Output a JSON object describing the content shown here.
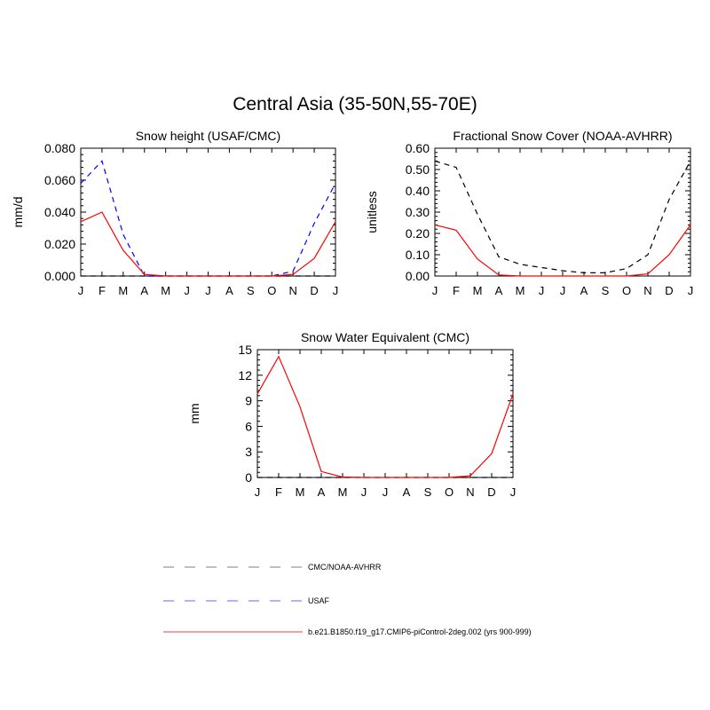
{
  "figure": {
    "title": "Central Asia (35-50N,55-70E)"
  },
  "colors": {
    "cmc_noaa": "#000000",
    "usaf": "#0000ff",
    "model": "#ff0000",
    "legend_cmc_noaa": "#999999",
    "legend_usaf": "#8888ee",
    "legend_model": "#ff6666"
  },
  "chart_data": [
    {
      "type": "line",
      "title": "Snow height (USAF/CMC)",
      "xlabel": "",
      "ylabel": "mm/d",
      "categories": [
        "J",
        "F",
        "M",
        "A",
        "M",
        "J",
        "J",
        "A",
        "S",
        "O",
        "N",
        "D",
        "J"
      ],
      "ylim": [
        0,
        0.08
      ],
      "yticks": [
        0,
        0.02,
        0.04,
        0.06,
        0.08
      ],
      "ytick_labels": [
        "0.000",
        "0.020",
        "0.040",
        "0.060",
        "0.080"
      ],
      "series": [
        {
          "key": "cmc_noaa",
          "dash": "6,5",
          "values": [
            0,
            0,
            0,
            0,
            0,
            0,
            0,
            0,
            0,
            0,
            0,
            0,
            0
          ]
        },
        {
          "key": "usaf",
          "dash": "6,5",
          "values": [
            0.058,
            0.072,
            0.026,
            0.0,
            0.0,
            0.0,
            0.0,
            0.0,
            0.0,
            0.0,
            0.003,
            0.033,
            0.058
          ]
        },
        {
          "key": "model",
          "dash": "",
          "values": [
            0.034,
            0.04,
            0.016,
            0.001,
            0.0,
            0.0,
            0.0,
            0.0,
            0.0,
            0.0,
            0.001,
            0.011,
            0.034
          ]
        }
      ]
    },
    {
      "type": "line",
      "title": "Fractional Snow Cover (NOAA-AVHRR)",
      "xlabel": "",
      "ylabel": "unitless",
      "categories": [
        "J",
        "F",
        "M",
        "A",
        "M",
        "J",
        "J",
        "A",
        "S",
        "O",
        "N",
        "D",
        "J"
      ],
      "ylim": [
        0,
        0.6
      ],
      "yticks": [
        0,
        0.1,
        0.2,
        0.3,
        0.4,
        0.5,
        0.6
      ],
      "ytick_labels": [
        "0.00",
        "0.10",
        "0.20",
        "0.30",
        "0.40",
        "0.50",
        "0.60"
      ],
      "series": [
        {
          "key": "cmc_noaa",
          "dash": "6,5",
          "values": [
            0.54,
            0.51,
            0.29,
            0.09,
            0.055,
            0.04,
            0.025,
            0.015,
            0.015,
            0.035,
            0.1,
            0.36,
            0.54
          ]
        },
        {
          "key": "model",
          "dash": "",
          "values": [
            0.24,
            0.215,
            0.08,
            0.005,
            0.0,
            0.0,
            0.0,
            0.0,
            0.0,
            0.0,
            0.01,
            0.1,
            0.24
          ]
        }
      ]
    },
    {
      "type": "line",
      "title": "Snow Water Equivalent (CMC)",
      "xlabel": "",
      "ylabel": "mm",
      "categories": [
        "J",
        "F",
        "M",
        "A",
        "M",
        "J",
        "J",
        "A",
        "S",
        "O",
        "N",
        "D",
        "J"
      ],
      "ylim": [
        0,
        15
      ],
      "yticks": [
        0,
        3,
        6,
        9,
        12,
        15
      ],
      "ytick_labels": [
        "0",
        "3",
        "6",
        "9",
        "12",
        "15"
      ],
      "series": [
        {
          "key": "cmc_noaa",
          "dash": "6,5",
          "values": [
            0,
            0,
            0,
            0,
            0,
            0,
            0,
            0,
            0,
            0,
            0,
            0,
            0
          ]
        },
        {
          "key": "model",
          "dash": "",
          "values": [
            9.8,
            14.2,
            8.3,
            0.7,
            0.05,
            0.0,
            0.0,
            0.0,
            0.0,
            0.0,
            0.2,
            2.8,
            9.8
          ]
        }
      ]
    }
  ],
  "legend": [
    {
      "key": "legend_cmc_noaa",
      "dash": "12,12",
      "label": "CMC/NOAA-AVHRR"
    },
    {
      "key": "legend_usaf",
      "dash": "12,12",
      "label": "USAF"
    },
    {
      "key": "legend_model",
      "dash": "",
      "label": "b.e21.B1850.f19_g17.CMIP6-piControl-2deg.002 (yrs 900-999)"
    }
  ]
}
